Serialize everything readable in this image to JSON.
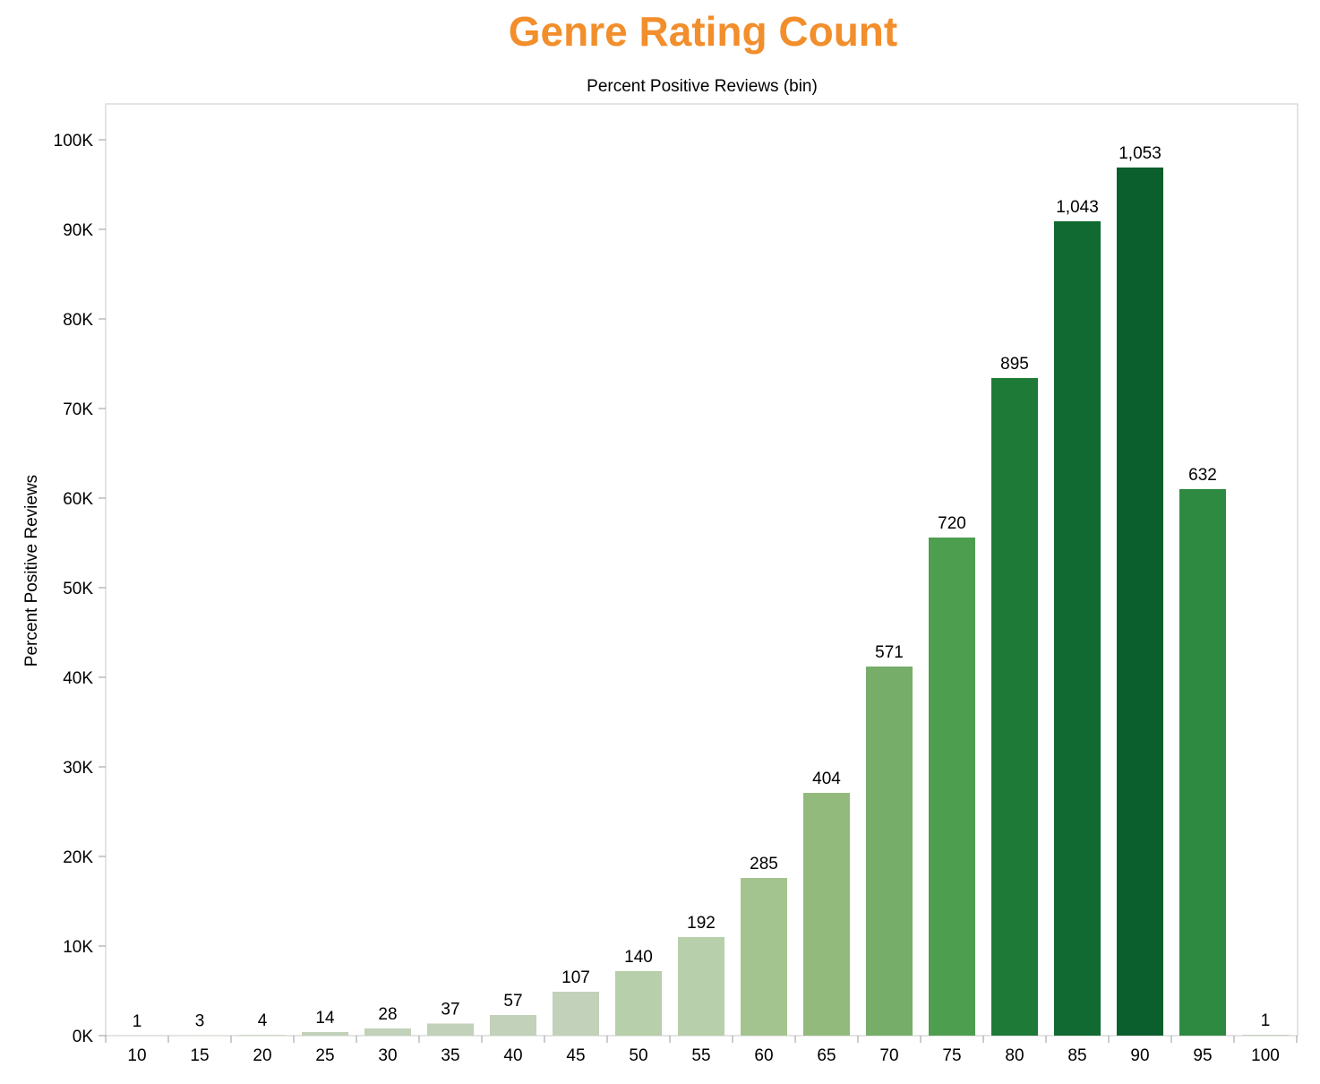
{
  "chart_data": {
    "type": "bar",
    "title": "Genre Rating Count",
    "xlabel": "Percent Positive Reviews (bin)",
    "ylabel": "Percent Positive Reviews",
    "ylim": [
      0,
      104000
    ],
    "y_ticks": [
      {
        "value": 0,
        "label": "0K"
      },
      {
        "value": 10000,
        "label": "10K"
      },
      {
        "value": 20000,
        "label": "20K"
      },
      {
        "value": 30000,
        "label": "30K"
      },
      {
        "value": 40000,
        "label": "40K"
      },
      {
        "value": 50000,
        "label": "50K"
      },
      {
        "value": 60000,
        "label": "60K"
      },
      {
        "value": 70000,
        "label": "70K"
      },
      {
        "value": 80000,
        "label": "80K"
      },
      {
        "value": 90000,
        "label": "90K"
      },
      {
        "value": 100000,
        "label": "100K"
      }
    ],
    "categories": [
      "10",
      "15",
      "20",
      "25",
      "30",
      "35",
      "40",
      "45",
      "50",
      "55",
      "60",
      "65",
      "70",
      "75",
      "80",
      "85",
      "90",
      "95",
      "100"
    ],
    "values": [
      10,
      45,
      80,
      400,
      800,
      1350,
      2300,
      4900,
      7200,
      11000,
      17600,
      27100,
      41200,
      55600,
      73400,
      90900,
      96900,
      61000,
      100
    ],
    "data_labels": [
      "1",
      "3",
      "4",
      "14",
      "28",
      "37",
      "57",
      "107",
      "140",
      "192",
      "285",
      "404",
      "571",
      "720",
      "895",
      "1,043",
      "1,053",
      "632",
      "1"
    ],
    "grid": false,
    "legend": "none",
    "colors": {
      "title": "#f28e2b",
      "bar_scale": [
        "#c2d1b9",
        "#b7cfaa",
        "#a4c48f",
        "#92ba7c",
        "#76ad68",
        "#4e9e50",
        "#2d8a40",
        "#1e7a37",
        "#106a31",
        "#0b5f2c"
      ]
    }
  }
}
